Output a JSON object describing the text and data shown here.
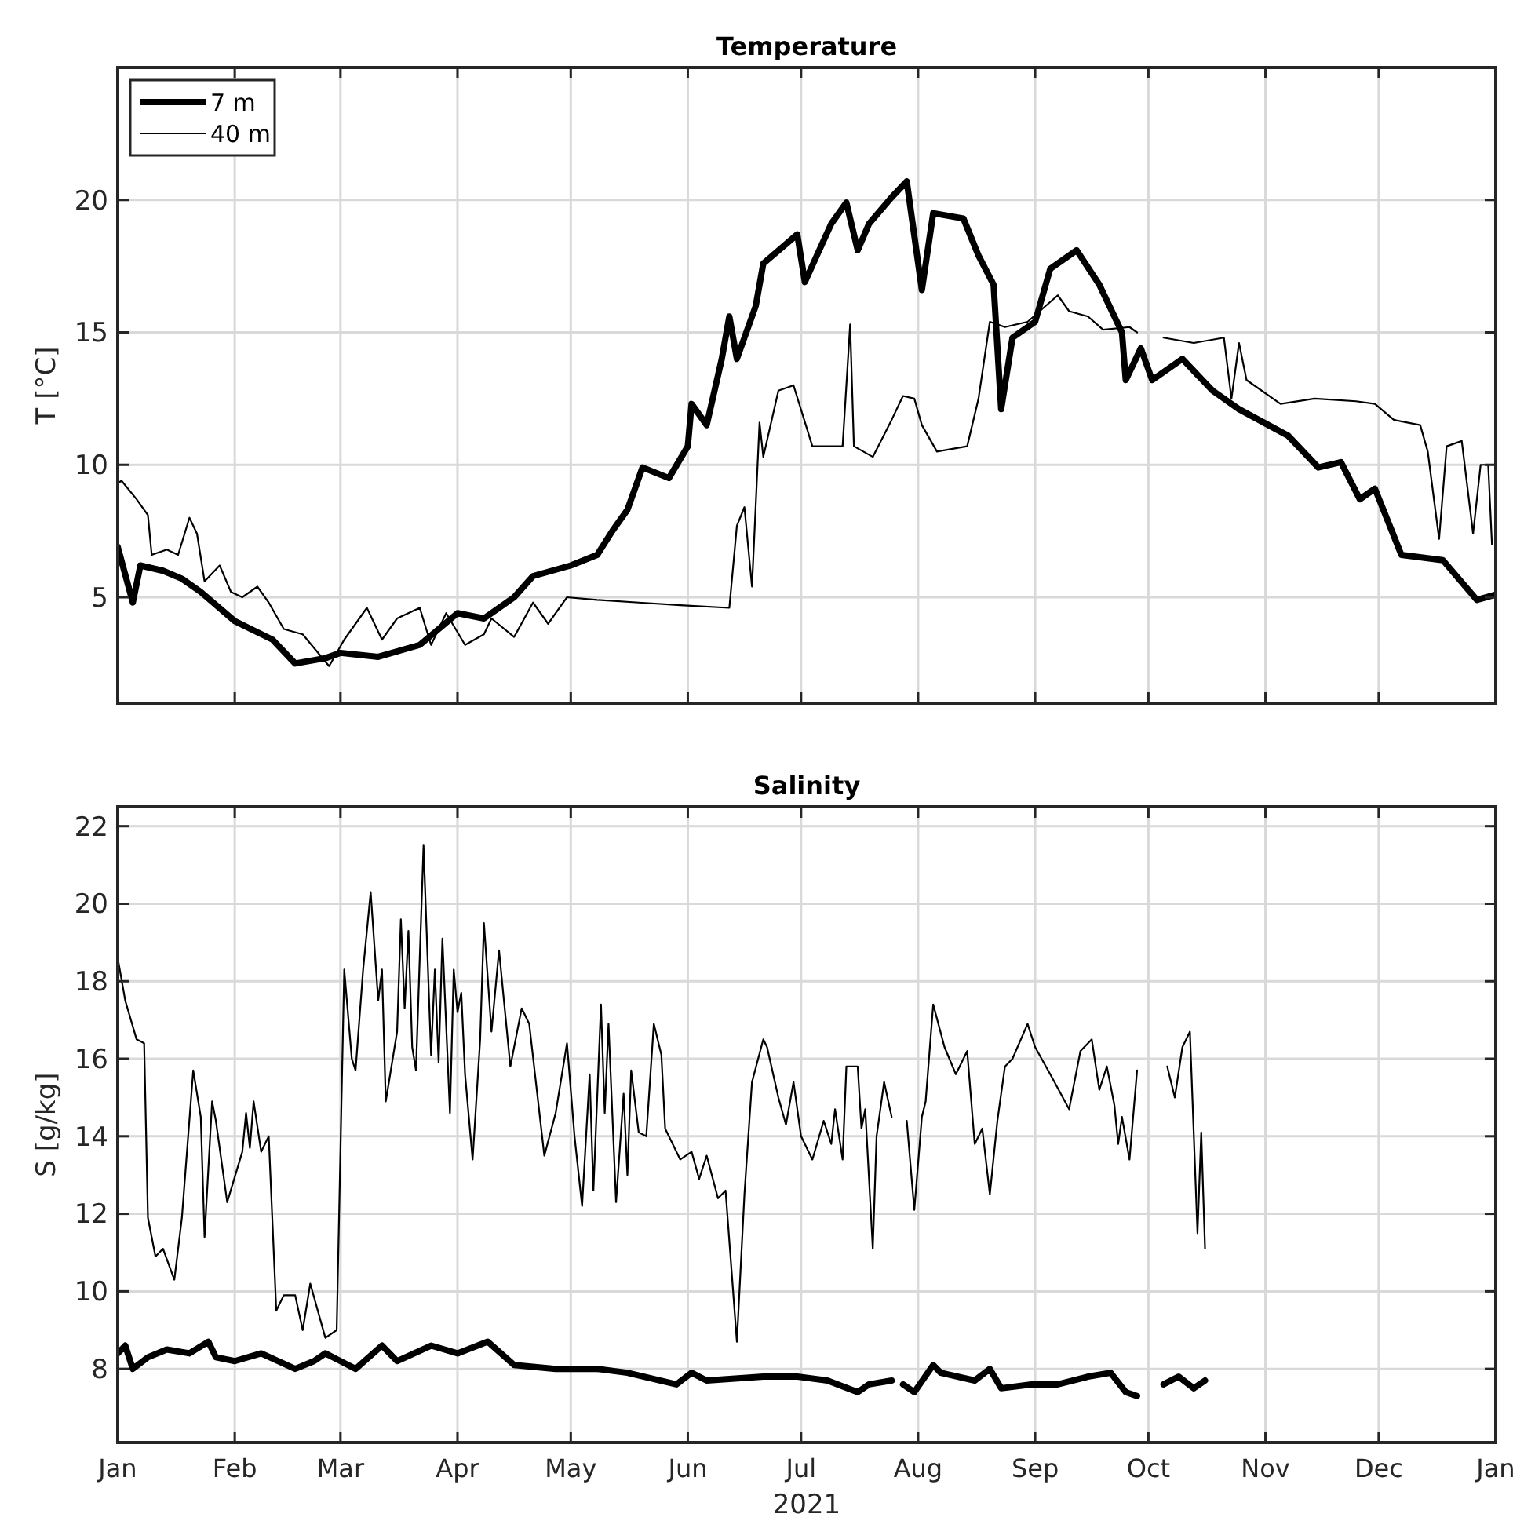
{
  "chart_data": [
    {
      "type": "line",
      "title": "Temperature",
      "ylabel": "T [°C]",
      "xlim": [
        "2021-01-01",
        "2022-01-01"
      ],
      "ylim": [
        1,
        25
      ],
      "yticks": [
        5,
        10,
        15,
        20
      ],
      "xticks": [
        {
          "value": "2021-01-01",
          "label": null
        },
        {
          "value": "2021-02-01",
          "label": null
        },
        {
          "value": "2021-03-01",
          "label": null
        },
        {
          "value": "2021-04-01",
          "label": null
        },
        {
          "value": "2021-05-01",
          "label": null
        },
        {
          "value": "2021-06-01",
          "label": null
        },
        {
          "value": "2021-07-01",
          "label": null
        },
        {
          "value": "2021-08-01",
          "label": null
        },
        {
          "value": "2021-09-01",
          "label": null
        },
        {
          "value": "2021-10-01",
          "label": null
        },
        {
          "value": "2021-11-01",
          "label": null
        },
        {
          "value": "2021-12-01",
          "label": null
        },
        {
          "value": "2022-01-01",
          "label": null
        }
      ],
      "tick_labels": "y",
      "grid": true,
      "legend": "top left",
      "marker": "none",
      "line_style": "solid",
      "series": [
        {
          "name": "7 m",
          "color": "#000000",
          "x": [
            "2021-01-01",
            "2021-01-05",
            "2021-01-07",
            "2021-01-13",
            "2021-01-18",
            "2021-01-23",
            "2021-02-01",
            "2021-02-11",
            "2021-02-17",
            "2021-02-25",
            "2021-03-01",
            "2021-03-11",
            "2021-03-22",
            "2021-04-01",
            "2021-04-08",
            "2021-04-16",
            "2021-04-21",
            "2021-05-01",
            "2021-05-08",
            "2021-05-12",
            "2021-05-16",
            "2021-05-20",
            "2021-05-27",
            "2021-06-01",
            "2021-06-02",
            "2021-06-06",
            "2021-06-10",
            "2021-06-12",
            "2021-06-14",
            "2021-06-19",
            "2021-06-21",
            "2021-06-30",
            "2021-07-02",
            "2021-07-09",
            "2021-07-13",
            "2021-07-16",
            "2021-07-19",
            "2021-07-25",
            "2021-07-29",
            "2021-08-02",
            "2021-08-05",
            "2021-08-13",
            "2021-08-17",
            "2021-08-21",
            "2021-08-23",
            "2021-08-26",
            "2021-09-01",
            "2021-09-05",
            "2021-09-12",
            "2021-09-18",
            "2021-09-24",
            "2021-09-25",
            "2021-09-29",
            "2021-10-02",
            "2021-10-10",
            "2021-10-18",
            "2021-10-25",
            "2021-11-07",
            "2021-11-15",
            "2021-11-21",
            "2021-11-26",
            "2021-11-30",
            "2021-12-07",
            "2021-12-18",
            "2021-12-27",
            "2022-01-01"
          ],
          "values": [
            6.9,
            4.8,
            6.2,
            6.0,
            5.7,
            5.2,
            4.1,
            3.4,
            2.5,
            2.7,
            2.9,
            2.75,
            3.2,
            4.4,
            4.2,
            5.0,
            5.8,
            6.2,
            6.6,
            7.5,
            8.3,
            9.9,
            9.5,
            10.7,
            12.3,
            11.5,
            14.0,
            15.6,
            14.0,
            16.0,
            17.6,
            18.7,
            16.9,
            19.1,
            19.9,
            18.1,
            19.1,
            20.1,
            20.7,
            16.6,
            19.5,
            19.3,
            17.9,
            16.8,
            12.1,
            14.8,
            15.4,
            17.4,
            18.1,
            16.8,
            15.0,
            13.2,
            14.4,
            13.2,
            14.0,
            12.8,
            12.1,
            11.1,
            9.9,
            10.1,
            8.7,
            9.1,
            6.6,
            6.4,
            4.9,
            5.1
          ]
        },
        {
          "name": "40 m",
          "color": "#000000",
          "x": [
            "2021-01-01",
            "2021-01-02",
            "2021-01-06",
            "2021-01-09",
            "2021-01-10",
            "2021-01-14",
            "2021-01-17",
            "2021-01-20",
            "2021-01-22",
            "2021-01-24",
            "2021-01-28",
            "2021-01-31",
            "2021-02-03",
            "2021-02-07",
            "2021-02-10",
            "2021-02-14",
            "2021-02-19",
            "2021-02-26",
            "2021-03-02",
            "2021-03-08",
            "2021-03-12",
            "2021-03-16",
            "2021-03-22",
            "2021-03-25",
            "2021-03-29",
            "2021-04-03",
            "2021-04-08",
            "2021-04-10",
            "2021-04-16",
            "2021-04-21",
            "2021-04-25",
            "2021-04-30",
            "2021-05-08",
            "2021-05-19",
            "2021-05-30",
            "2021-06-12",
            "2021-06-14",
            "2021-06-16",
            "2021-06-18",
            "2021-06-20",
            "2021-06-21",
            "2021-06-25",
            "2021-06-29",
            "2021-07-04",
            "2021-07-12",
            "2021-07-14",
            "2021-07-15",
            "2021-07-20",
            "2021-07-25",
            "2021-07-28",
            "2021-07-31",
            "2021-08-02",
            "2021-08-06",
            "2021-08-14",
            "2021-08-17",
            "2021-08-20",
            "2021-08-24",
            "2021-08-30",
            "2021-09-07",
            "2021-09-10",
            "2021-09-15",
            "2021-09-19",
            "2021-09-26",
            "2021-09-28",
            "2021-10-02",
            "2021-10-05",
            "2021-10-13",
            "2021-10-21",
            "2021-10-23",
            "2021-10-25",
            "2021-10-27",
            "2021-10-31",
            "2021-11-05",
            "2021-11-14",
            "2021-11-25",
            "2021-11-30",
            "2021-12-05",
            "2021-12-12",
            "2021-12-14",
            "2021-12-17",
            "2021-12-19",
            "2021-12-23",
            "2021-12-26",
            "2021-12-28",
            "2021-12-30",
            "2021-12-31"
          ],
          "values": [
            9.3,
            9.4,
            8.7,
            8.1,
            6.6,
            6.8,
            6.6,
            8.0,
            7.4,
            5.6,
            6.2,
            5.2,
            5.0,
            5.4,
            4.8,
            3.8,
            3.6,
            2.4,
            3.4,
            4.6,
            3.4,
            4.2,
            4.6,
            3.2,
            4.4,
            3.2,
            3.6,
            4.2,
            3.5,
            4.8,
            4.0,
            5.0,
            4.9,
            4.8,
            4.7,
            4.6,
            7.7,
            8.4,
            5.4,
            11.6,
            10.3,
            12.8,
            13.0,
            10.7,
            10.7,
            15.3,
            10.7,
            10.3,
            11.7,
            12.6,
            12.5,
            11.5,
            10.5,
            10.7,
            12.5,
            15.4,
            15.2,
            15.4,
            16.4,
            15.8,
            15.6,
            15.1,
            15.2,
            15.0,
            null,
            14.8,
            14.6,
            14.8,
            12.5,
            14.6,
            13.2,
            12.8,
            12.3,
            12.5,
            12.4,
            12.3,
            11.7,
            11.5,
            10.5,
            7.2,
            10.7,
            10.9,
            7.4,
            10.0,
            10.0,
            7.0
          ]
        }
      ]
    },
    {
      "type": "line",
      "title": "Salinity",
      "ylabel": "S [g/kg]",
      "xlabel": "2021",
      "xlim": [
        "2021-01-01",
        "2022-01-01"
      ],
      "ylim": [
        6.1,
        22.5
      ],
      "yticks": [
        8,
        10,
        12,
        14,
        16,
        18,
        20,
        22
      ],
      "xticks": [
        {
          "value": "2021-01-01",
          "label": "Jan"
        },
        {
          "value": "2021-02-01",
          "label": "Feb"
        },
        {
          "value": "2021-03-01",
          "label": "Mar"
        },
        {
          "value": "2021-04-01",
          "label": "Apr"
        },
        {
          "value": "2021-05-01",
          "label": "May"
        },
        {
          "value": "2021-06-01",
          "label": "Jun"
        },
        {
          "value": "2021-07-01",
          "label": "Jul"
        },
        {
          "value": "2021-08-01",
          "label": "Aug"
        },
        {
          "value": "2021-09-01",
          "label": "Sep"
        },
        {
          "value": "2021-10-01",
          "label": "Oct"
        },
        {
          "value": "2021-11-01",
          "label": "Nov"
        },
        {
          "value": "2021-12-01",
          "label": "Dec"
        },
        {
          "value": "2022-01-01",
          "label": "Jan"
        }
      ],
      "grid": true,
      "marker": "none",
      "line_style": "solid",
      "series": [
        {
          "color": "#000000",
          "x": [
            "2021-01-01",
            "2021-01-03",
            "2021-01-05",
            "2021-01-09",
            "2021-01-14",
            "2021-01-20",
            "2021-01-25",
            "2021-01-27",
            "2021-02-01",
            "2021-02-08",
            "2021-02-17",
            "2021-02-22",
            "2021-02-25",
            "2021-03-01",
            "2021-03-05",
            "2021-03-12",
            "2021-03-16",
            "2021-03-25",
            "2021-04-01",
            "2021-04-09",
            "2021-04-16",
            "2021-04-27",
            "2021-04-30",
            "2021-05-08",
            "2021-05-16",
            "2021-05-29",
            "2021-06-02",
            "2021-06-06",
            "2021-06-21",
            "2021-06-30",
            "2021-07-08",
            "2021-07-16",
            "2021-07-19",
            "2021-07-25",
            "2021-07-27",
            "2021-07-28",
            "2021-07-31",
            "2021-08-05",
            "2021-08-07",
            "2021-08-16",
            "2021-08-20",
            "2021-08-23",
            "2021-08-31",
            "2021-09-07",
            "2021-09-15",
            "2021-09-21",
            "2021-09-25",
            "2021-09-28",
            "2021-10-02",
            "2021-10-05",
            "2021-10-09",
            "2021-10-13",
            "2021-10-16"
          ],
          "values": [
            8.4,
            8.6,
            8.0,
            8.3,
            8.5,
            8.4,
            8.7,
            8.3,
            8.2,
            8.4,
            8.0,
            8.2,
            8.4,
            8.2,
            8.0,
            8.6,
            8.2,
            8.6,
            8.4,
            8.7,
            8.1,
            8.0,
            8.0,
            8.0,
            7.9,
            7.6,
            7.9,
            7.7,
            7.8,
            7.8,
            7.7,
            7.4,
            7.6,
            7.7,
            null,
            7.6,
            7.4,
            8.1,
            7.9,
            7.7,
            8.0,
            7.5,
            7.6,
            7.6,
            7.8,
            7.9,
            7.4,
            7.3,
            null,
            7.6,
            7.8,
            7.5,
            7.7
          ]
        },
        {
          "color": "#000000",
          "x": [
            "2021-01-01",
            "2021-01-03",
            "2021-01-06",
            "2021-01-08",
            "2021-01-09",
            "2021-01-11",
            "2021-01-13",
            "2021-01-16",
            "2021-01-18",
            "2021-01-21",
            "2021-01-23",
            "2021-01-24",
            "2021-01-26",
            "2021-01-27",
            "2021-01-30",
            "2021-02-03",
            "2021-02-04",
            "2021-02-05",
            "2021-02-06",
            "2021-02-08",
            "2021-02-10",
            "2021-02-12",
            "2021-02-14",
            "2021-02-17",
            "2021-02-19",
            "2021-02-21",
            "2021-02-25",
            "2021-02-28",
            "2021-03-02",
            "2021-03-04",
            "2021-03-05",
            "2021-03-07",
            "2021-03-09",
            "2021-03-11",
            "2021-03-12",
            "2021-03-13",
            "2021-03-16",
            "2021-03-17",
            "2021-03-18",
            "2021-03-19",
            "2021-03-20",
            "2021-03-21",
            "2021-03-23",
            "2021-03-25",
            "2021-03-26",
            "2021-03-27",
            "2021-03-28",
            "2021-03-30",
            "2021-03-31",
            "2021-04-01",
            "2021-04-02",
            "2021-04-03",
            "2021-04-05",
            "2021-04-07",
            "2021-04-08",
            "2021-04-10",
            "2021-04-12",
            "2021-04-15",
            "2021-04-18",
            "2021-04-20",
            "2021-04-22",
            "2021-04-24",
            "2021-04-27",
            "2021-04-30",
            "2021-05-02",
            "2021-05-04",
            "2021-05-06",
            "2021-05-07",
            "2021-05-09",
            "2021-05-10",
            "2021-05-11",
            "2021-05-13",
            "2021-05-15",
            "2021-05-16",
            "2021-05-17",
            "2021-05-19",
            "2021-05-21",
            "2021-05-23",
            "2021-05-25",
            "2021-05-26",
            "2021-05-30",
            "2021-06-02",
            "2021-06-04",
            "2021-06-06",
            "2021-06-09",
            "2021-06-11",
            "2021-06-14",
            "2021-06-16",
            "2021-06-18",
            "2021-06-21",
            "2021-06-22",
            "2021-06-25",
            "2021-06-27",
            "2021-06-29",
            "2021-07-01",
            "2021-07-04",
            "2021-07-07",
            "2021-07-09",
            "2021-07-10",
            "2021-07-12",
            "2021-07-13",
            "2021-07-16",
            "2021-07-17",
            "2021-07-18",
            "2021-07-20",
            "2021-07-21",
            "2021-07-23",
            "2021-07-25",
            "2021-07-27",
            "2021-07-29",
            "2021-07-31",
            "2021-08-02",
            "2021-08-03",
            "2021-08-05",
            "2021-08-08",
            "2021-08-11",
            "2021-08-14",
            "2021-08-16",
            "2021-08-18",
            "2021-08-20",
            "2021-08-22",
            "2021-08-24",
            "2021-08-26",
            "2021-08-30",
            "2021-09-01",
            "2021-09-05",
            "2021-09-10",
            "2021-09-13",
            "2021-09-16",
            "2021-09-18",
            "2021-09-20",
            "2021-09-22",
            "2021-09-23",
            "2021-09-24",
            "2021-09-26",
            "2021-09-28",
            "2021-10-02",
            "2021-10-06",
            "2021-10-08",
            "2021-10-10",
            "2021-10-12",
            "2021-10-14",
            "2021-10-15",
            "2021-10-16"
          ],
          "values": [
            18.6,
            17.5,
            16.5,
            16.4,
            11.9,
            10.9,
            11.1,
            10.3,
            11.9,
            15.7,
            14.5,
            11.4,
            14.9,
            14.4,
            12.3,
            13.6,
            14.6,
            13.7,
            14.9,
            13.6,
            14.0,
            9.5,
            9.9,
            9.9,
            9.0,
            10.2,
            8.8,
            9.0,
            18.3,
            16.0,
            15.7,
            18.3,
            20.3,
            17.5,
            18.3,
            14.9,
            16.7,
            19.6,
            17.3,
            19.3,
            16.3,
            15.7,
            21.5,
            16.1,
            18.3,
            15.9,
            19.1,
            14.6,
            18.3,
            17.2,
            17.7,
            15.6,
            13.4,
            16.5,
            19.5,
            16.7,
            18.8,
            15.8,
            17.3,
            16.9,
            15.2,
            13.5,
            14.6,
            16.4,
            14.0,
            12.2,
            15.6,
            12.6,
            17.4,
            14.6,
            16.9,
            12.3,
            15.1,
            13.0,
            15.7,
            14.1,
            14.0,
            16.9,
            16.1,
            14.2,
            13.4,
            13.6,
            12.9,
            13.5,
            12.4,
            12.6,
            8.7,
            12.5,
            15.4,
            16.5,
            16.3,
            15.0,
            14.3,
            15.4,
            14.0,
            13.4,
            14.4,
            13.8,
            14.7,
            13.4,
            15.8,
            15.8,
            14.2,
            14.7,
            11.1,
            14.0,
            15.4,
            14.5,
            null,
            14.4,
            12.1,
            14.5,
            14.9,
            17.4,
            16.3,
            15.6,
            16.2,
            13.8,
            14.2,
            12.5,
            14.4,
            15.8,
            16.0,
            16.9,
            16.3,
            15.6,
            14.7,
            16.2,
            16.5,
            15.2,
            15.8,
            14.8,
            13.8,
            14.5,
            13.4,
            15.7,
            null,
            15.8,
            15.0,
            16.3,
            16.7,
            11.5,
            14.1,
            11.1
          ]
        }
      ]
    }
  ]
}
